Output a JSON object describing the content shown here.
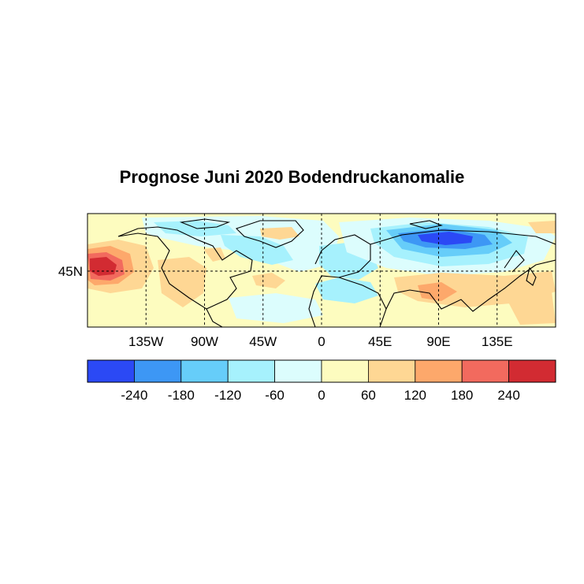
{
  "title": "Prognose Juni 2020 Bodendruckanomalie",
  "map": {
    "lon_labels": [
      "135W",
      "90W",
      "45W",
      "0",
      "45E",
      "90E",
      "135E"
    ],
    "lat_labels": [
      "45N"
    ],
    "lon_values": [
      -135,
      -90,
      -45,
      0,
      45,
      90,
      135
    ],
    "lat_values": [
      45
    ]
  },
  "colorbar": {
    "colors": [
      "#2b49f5",
      "#3d97f5",
      "#66cdf9",
      "#a6f1fd",
      "#dcfdfd",
      "#fdfcbf",
      "#fed794",
      "#fda86b",
      "#f26a5e",
      "#d22b32"
    ],
    "tick_labels": [
      "-240",
      "-180",
      "-120",
      "-60",
      "0",
      "60",
      "120",
      "180",
      "240"
    ]
  }
}
